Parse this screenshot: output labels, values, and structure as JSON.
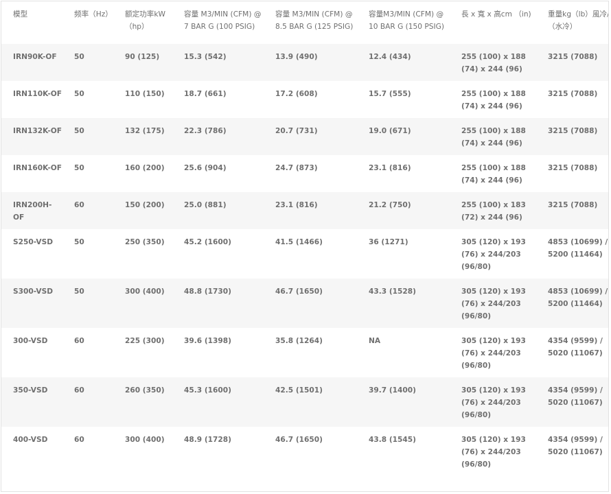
{
  "headers": [
    "模型",
    "频率（Hz）",
    "额定功率kW（hp）",
    "容量 M3/MIN (CFM) @ 7 BAR G (100 PSIG)",
    "容量 M3/MIN (CFM) @ 8.5 BAR G (125 PSIG)",
    "容量M3/MIN (CFM) @ 10 BAR G (150 PSIG)",
    "長 x 寬 x 高cm （in)",
    "重量kg（lb）風冷/（水冷）"
  ],
  "rows": [
    [
      "IRN90K-OF",
      "50",
      "90 (125)",
      "15.3 (542)",
      "13.9 (490)",
      "12.4 (434)",
      "255 (100) x 188 (74) x 244 (96)",
      "3215 (7088)"
    ],
    [
      "IRN110K-OF",
      "50",
      "110 (150)",
      "18.7 (661)",
      "17.2 (608)",
      "15.7 (555)",
      "255 (100) x 188 (74) x 244 (96)",
      "3215 (7088)"
    ],
    [
      "IRN132K-OF",
      "50",
      "132 (175)",
      "22.3 (786)",
      "20.7 (731)",
      "19.0 (671)",
      "255 (100) x 188 (74) x 244 (96)",
      "3215 (7088)"
    ],
    [
      "IRN160K-OF",
      "50",
      "160 (200)",
      "25.6 (904)",
      "24.7 (873)",
      "23.1 (816)",
      "255 (100) x 188 (74) x 244 (96)",
      "3215 (7088)"
    ],
    [
      "IRN200H-OF",
      "60",
      "150 (200)",
      "25.0 (881)",
      "23.1 (816)",
      "21.2 (750)",
      "255 (100) x 183 (72) x 244 (96)",
      "3215 (7088)"
    ],
    [
      "S250-VSD",
      "50",
      "250 (350)",
      "45.2 (1600)",
      "41.5 (1466)",
      "36 (1271)",
      "305 (120) x 193 (76) x 244/203 (96/80)",
      "4853 (10699) / 5200 (11464)"
    ],
    [
      "S300-VSD",
      "50",
      "300 (400)",
      "48.8 (1730)",
      "46.7 (1650)",
      "43.3 (1528)",
      "305 (120) x 193 (76) x 244/203 (96/80)",
      "4853 (10699) / 5200 (11464)"
    ],
    [
      "300-VSD",
      "60",
      "225 (300)",
      "39.6 (1398)",
      "35.8 (1264)",
      "NA",
      "305 (120) x 193 (76) x 244/203 (96/80)",
      "4354 (9599) / 5020 (11067)"
    ],
    [
      "350-VSD",
      "60",
      "260 (350)",
      "45.3 (1600)",
      "42.5 (1501)",
      "39.7 (1400)",
      "305 (120) x 193 (76) x 244/203 (96/80)",
      "4354 (9599) / 5020 (11067)"
    ],
    [
      "400-VSD",
      "60",
      "300 (400)",
      "48.9 (1728)",
      "46.7 (1650)",
      "43.8 (1545)",
      "305 (120) x 193 (76) x 244/203 (96/80)",
      "4354 (9599) / 5020 (11067)"
    ]
  ]
}
